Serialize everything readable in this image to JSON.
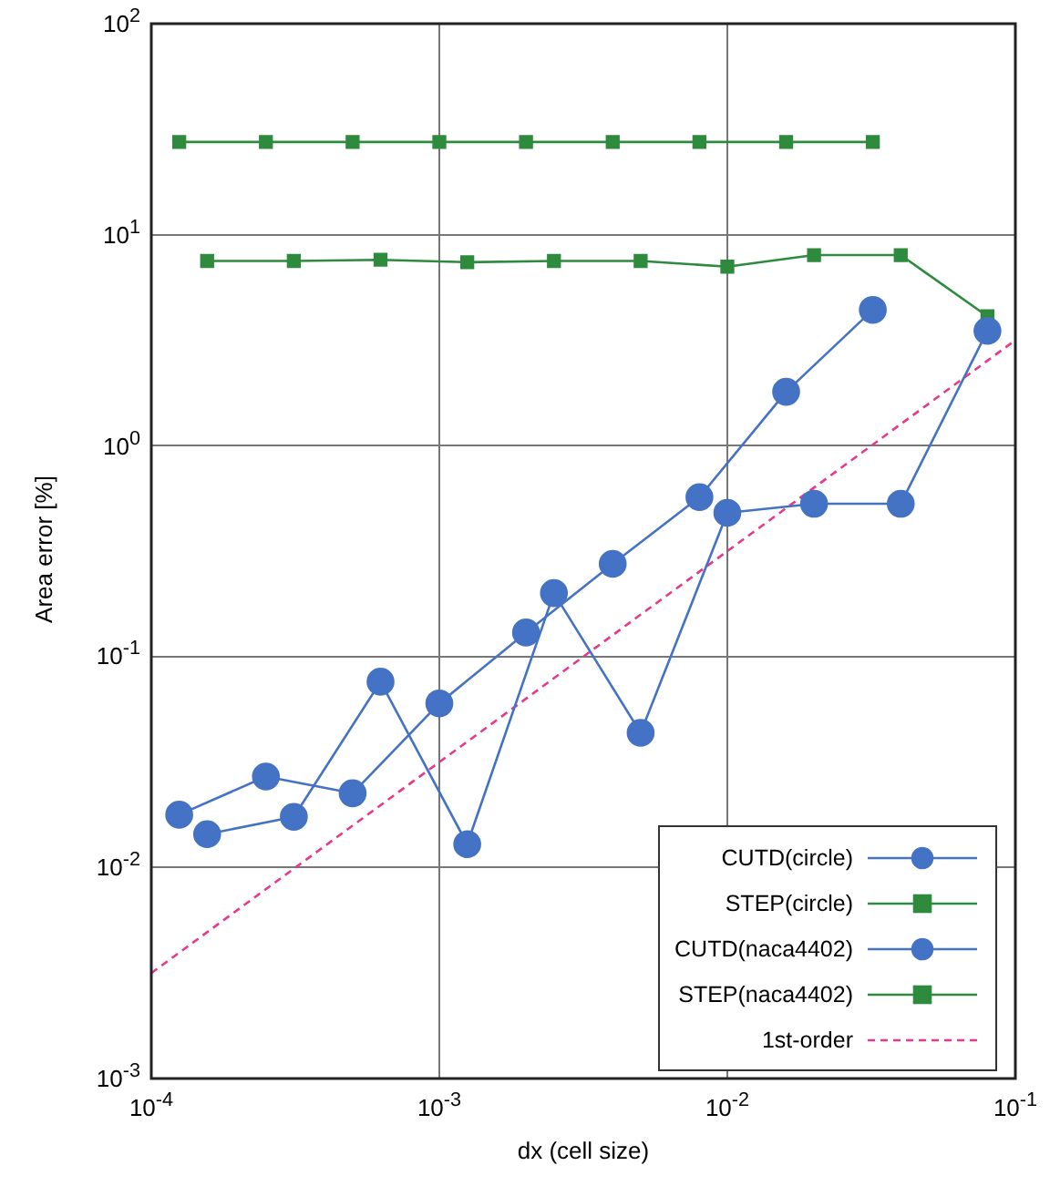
{
  "chart_data": {
    "type": "line",
    "xlabel": "dx (cell size)",
    "ylabel": "Area error [%]",
    "log": "xy",
    "grid": true,
    "legend": "bottom right",
    "xlim": [
      0.0001,
      0.1
    ],
    "ylim": [
      0.001,
      100
    ],
    "xticks": [
      {
        "value": 0.0001,
        "label": "10$^{-4}$"
      },
      {
        "value": 0.001,
        "label": "10$^{-3}$"
      },
      {
        "value": 0.01,
        "label": "10$^{-2}$"
      },
      {
        "value": 0.1,
        "label": "10$^{-1}$"
      }
    ],
    "yticks": [
      {
        "value": 0.001,
        "label": "10$^{-3}$"
      },
      {
        "value": 0.01,
        "label": "10$^{-2}$"
      },
      {
        "value": 0.1,
        "label": "10$^{-1}$"
      },
      {
        "value": 1,
        "label": "10$^{0}$"
      },
      {
        "value": 10,
        "label": "10$^{1}$"
      },
      {
        "value": 100,
        "label": "10$^{2}$"
      }
    ],
    "series": [
      {
        "name": "CUTD(circle)",
        "color": "#4472c4",
        "marker": "circle",
        "x": [
          0.000125,
          0.00025,
          0.0005,
          0.001,
          0.002,
          0.004,
          0.008,
          0.016,
          0.032
        ],
        "values": [
          0.0178,
          0.027,
          0.0225,
          0.06,
          0.13,
          0.275,
          0.57,
          1.8,
          4.4
        ]
      },
      {
        "name": "STEP(circle)",
        "color": "#2e8b3e",
        "marker": "square",
        "x": [
          0.000125,
          0.00025,
          0.0005,
          0.001,
          0.002,
          0.004,
          0.008,
          0.016,
          0.032
        ],
        "values": [
          27.5,
          27.5,
          27.5,
          27.5,
          27.5,
          27.5,
          27.5,
          27.5,
          27.5
        ]
      },
      {
        "name": "CUTD(naca4402)",
        "color": "#4472c4",
        "marker": "circle",
        "x": [
          0.00015625,
          0.0003125,
          0.000625,
          0.00125,
          0.0025,
          0.005,
          0.01,
          0.02,
          0.04,
          0.08
        ],
        "values": [
          0.0144,
          0.0174,
          0.076,
          0.0129,
          0.2,
          0.0435,
          0.48,
          0.53,
          0.53,
          3.5
        ]
      },
      {
        "name": "STEP(naca4402)",
        "color": "#2e8b3e",
        "marker": "square",
        "x": [
          0.00015625,
          0.0003125,
          0.000625,
          0.00125,
          0.0025,
          0.005,
          0.01,
          0.02,
          0.04,
          0.08
        ],
        "values": [
          7.5,
          7.5,
          7.6,
          7.4,
          7.5,
          7.5,
          7.05,
          8.0,
          8.0,
          4.1
        ]
      },
      {
        "name": "1st-order",
        "color": "#e8388a",
        "marker": "none",
        "line_style": "dashed",
        "x": [
          0.0001,
          0.1
        ],
        "values": [
          0.00316,
          3.16
        ]
      }
    ]
  }
}
